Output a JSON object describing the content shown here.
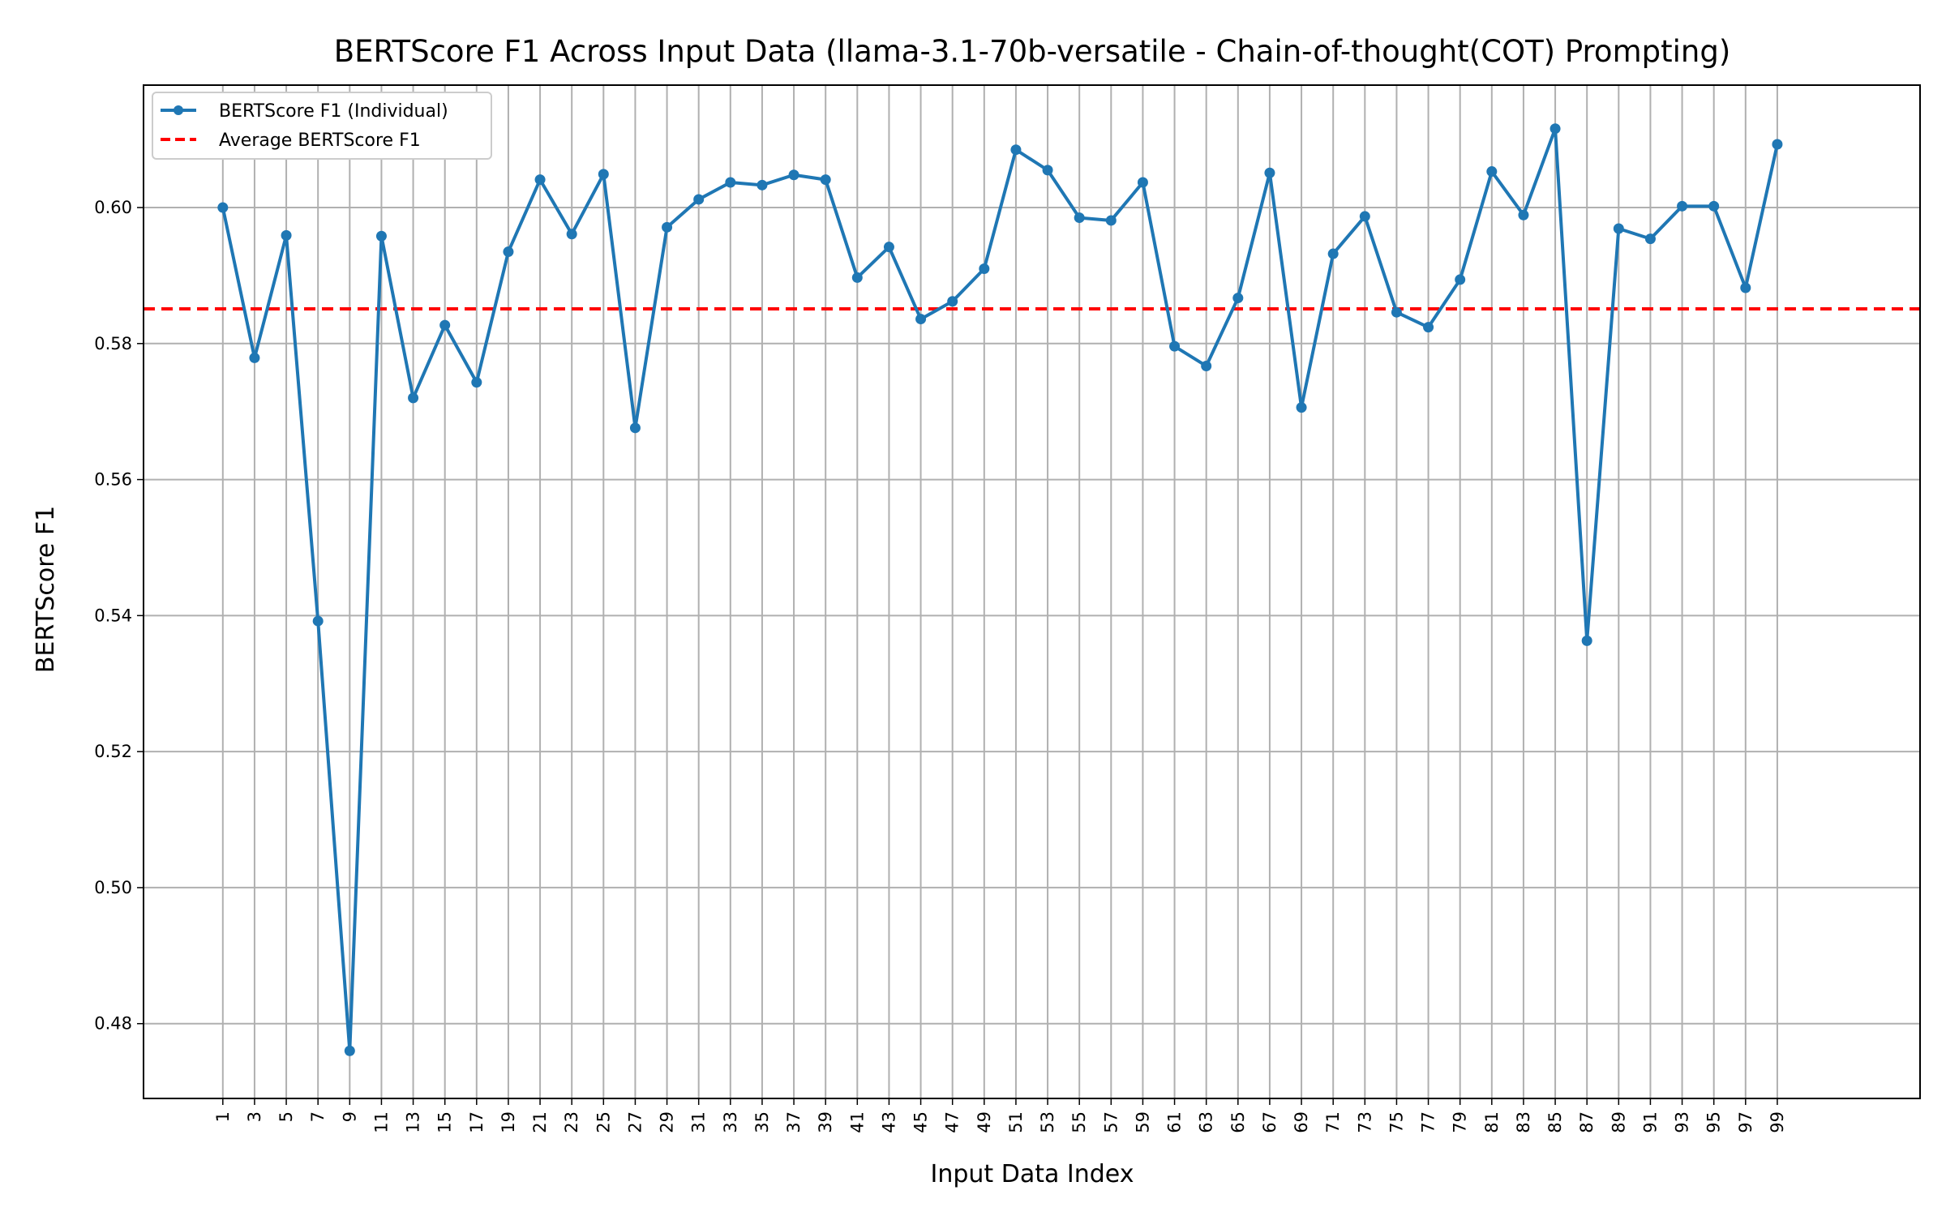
{
  "chart_data": {
    "type": "line",
    "title": "BERTScore F1 Across Input Data (llama-3.1-70b-versatile - Chain-of-thought(COT) Prompting)",
    "xlabel": "Input Data Index",
    "ylabel": "BERTScore F1",
    "x": [
      1,
      3,
      5,
      7,
      9,
      11,
      13,
      15,
      17,
      19,
      21,
      23,
      25,
      27,
      29,
      31,
      33,
      35,
      37,
      39,
      41,
      43,
      45,
      47,
      49,
      51,
      53,
      55,
      57,
      59,
      61,
      63,
      65,
      67,
      69,
      71,
      73,
      75,
      77,
      79,
      81,
      83,
      85,
      87,
      89,
      91,
      93,
      95,
      97,
      99
    ],
    "xticks": [
      "1",
      "3",
      "5",
      "7",
      "9",
      "11",
      "13",
      "15",
      "17",
      "19",
      "21",
      "23",
      "25",
      "27",
      "29",
      "31",
      "33",
      "35",
      "37",
      "39",
      "41",
      "43",
      "45",
      "47",
      "49",
      "51",
      "53",
      "55",
      "57",
      "59",
      "61",
      "63",
      "65",
      "67",
      "69",
      "71",
      "73",
      "75",
      "77",
      "79",
      "81",
      "83",
      "85",
      "87",
      "89",
      "91",
      "93",
      "95",
      "97",
      "99"
    ],
    "yticks": [
      0.48,
      0.5,
      0.52,
      0.54,
      0.56,
      0.58,
      0.6
    ],
    "ytick_labels": [
      "0.48",
      "0.50",
      "0.52",
      "0.54",
      "0.56",
      "0.58",
      "0.60"
    ],
    "xlim": [
      -4,
      108
    ],
    "ylim": [
      0.469,
      0.618
    ],
    "grid": true,
    "legend_position": "top-left",
    "series": [
      {
        "name": "BERTScore F1 (Individual)",
        "color": "#1f77b4",
        "style": "line-with-markers",
        "values": [
          0.6,
          0.5779,
          0.5959,
          0.5392,
          0.476,
          0.5958,
          0.572,
          0.5827,
          0.5743,
          0.5935,
          0.6041,
          0.5961,
          0.6049,
          0.5676,
          0.5971,
          0.6012,
          0.6037,
          0.6033,
          0.6048,
          0.6041,
          0.5897,
          0.5942,
          0.5836,
          0.5862,
          0.591,
          0.6085,
          0.6055,
          0.5985,
          0.5981,
          0.6037,
          0.5796,
          0.5767,
          0.5867,
          0.6051,
          0.5706,
          0.5932,
          0.5987,
          0.5846,
          0.5824,
          0.5894,
          0.6053,
          0.5989,
          0.6116,
          0.5363,
          0.5969,
          0.5954,
          0.6002,
          0.6002,
          0.5882,
          0.6093
        ]
      },
      {
        "name": "Average BERTScore F1",
        "color": "#ff0000",
        "style": "dashed",
        "value": 0.5851
      }
    ]
  }
}
